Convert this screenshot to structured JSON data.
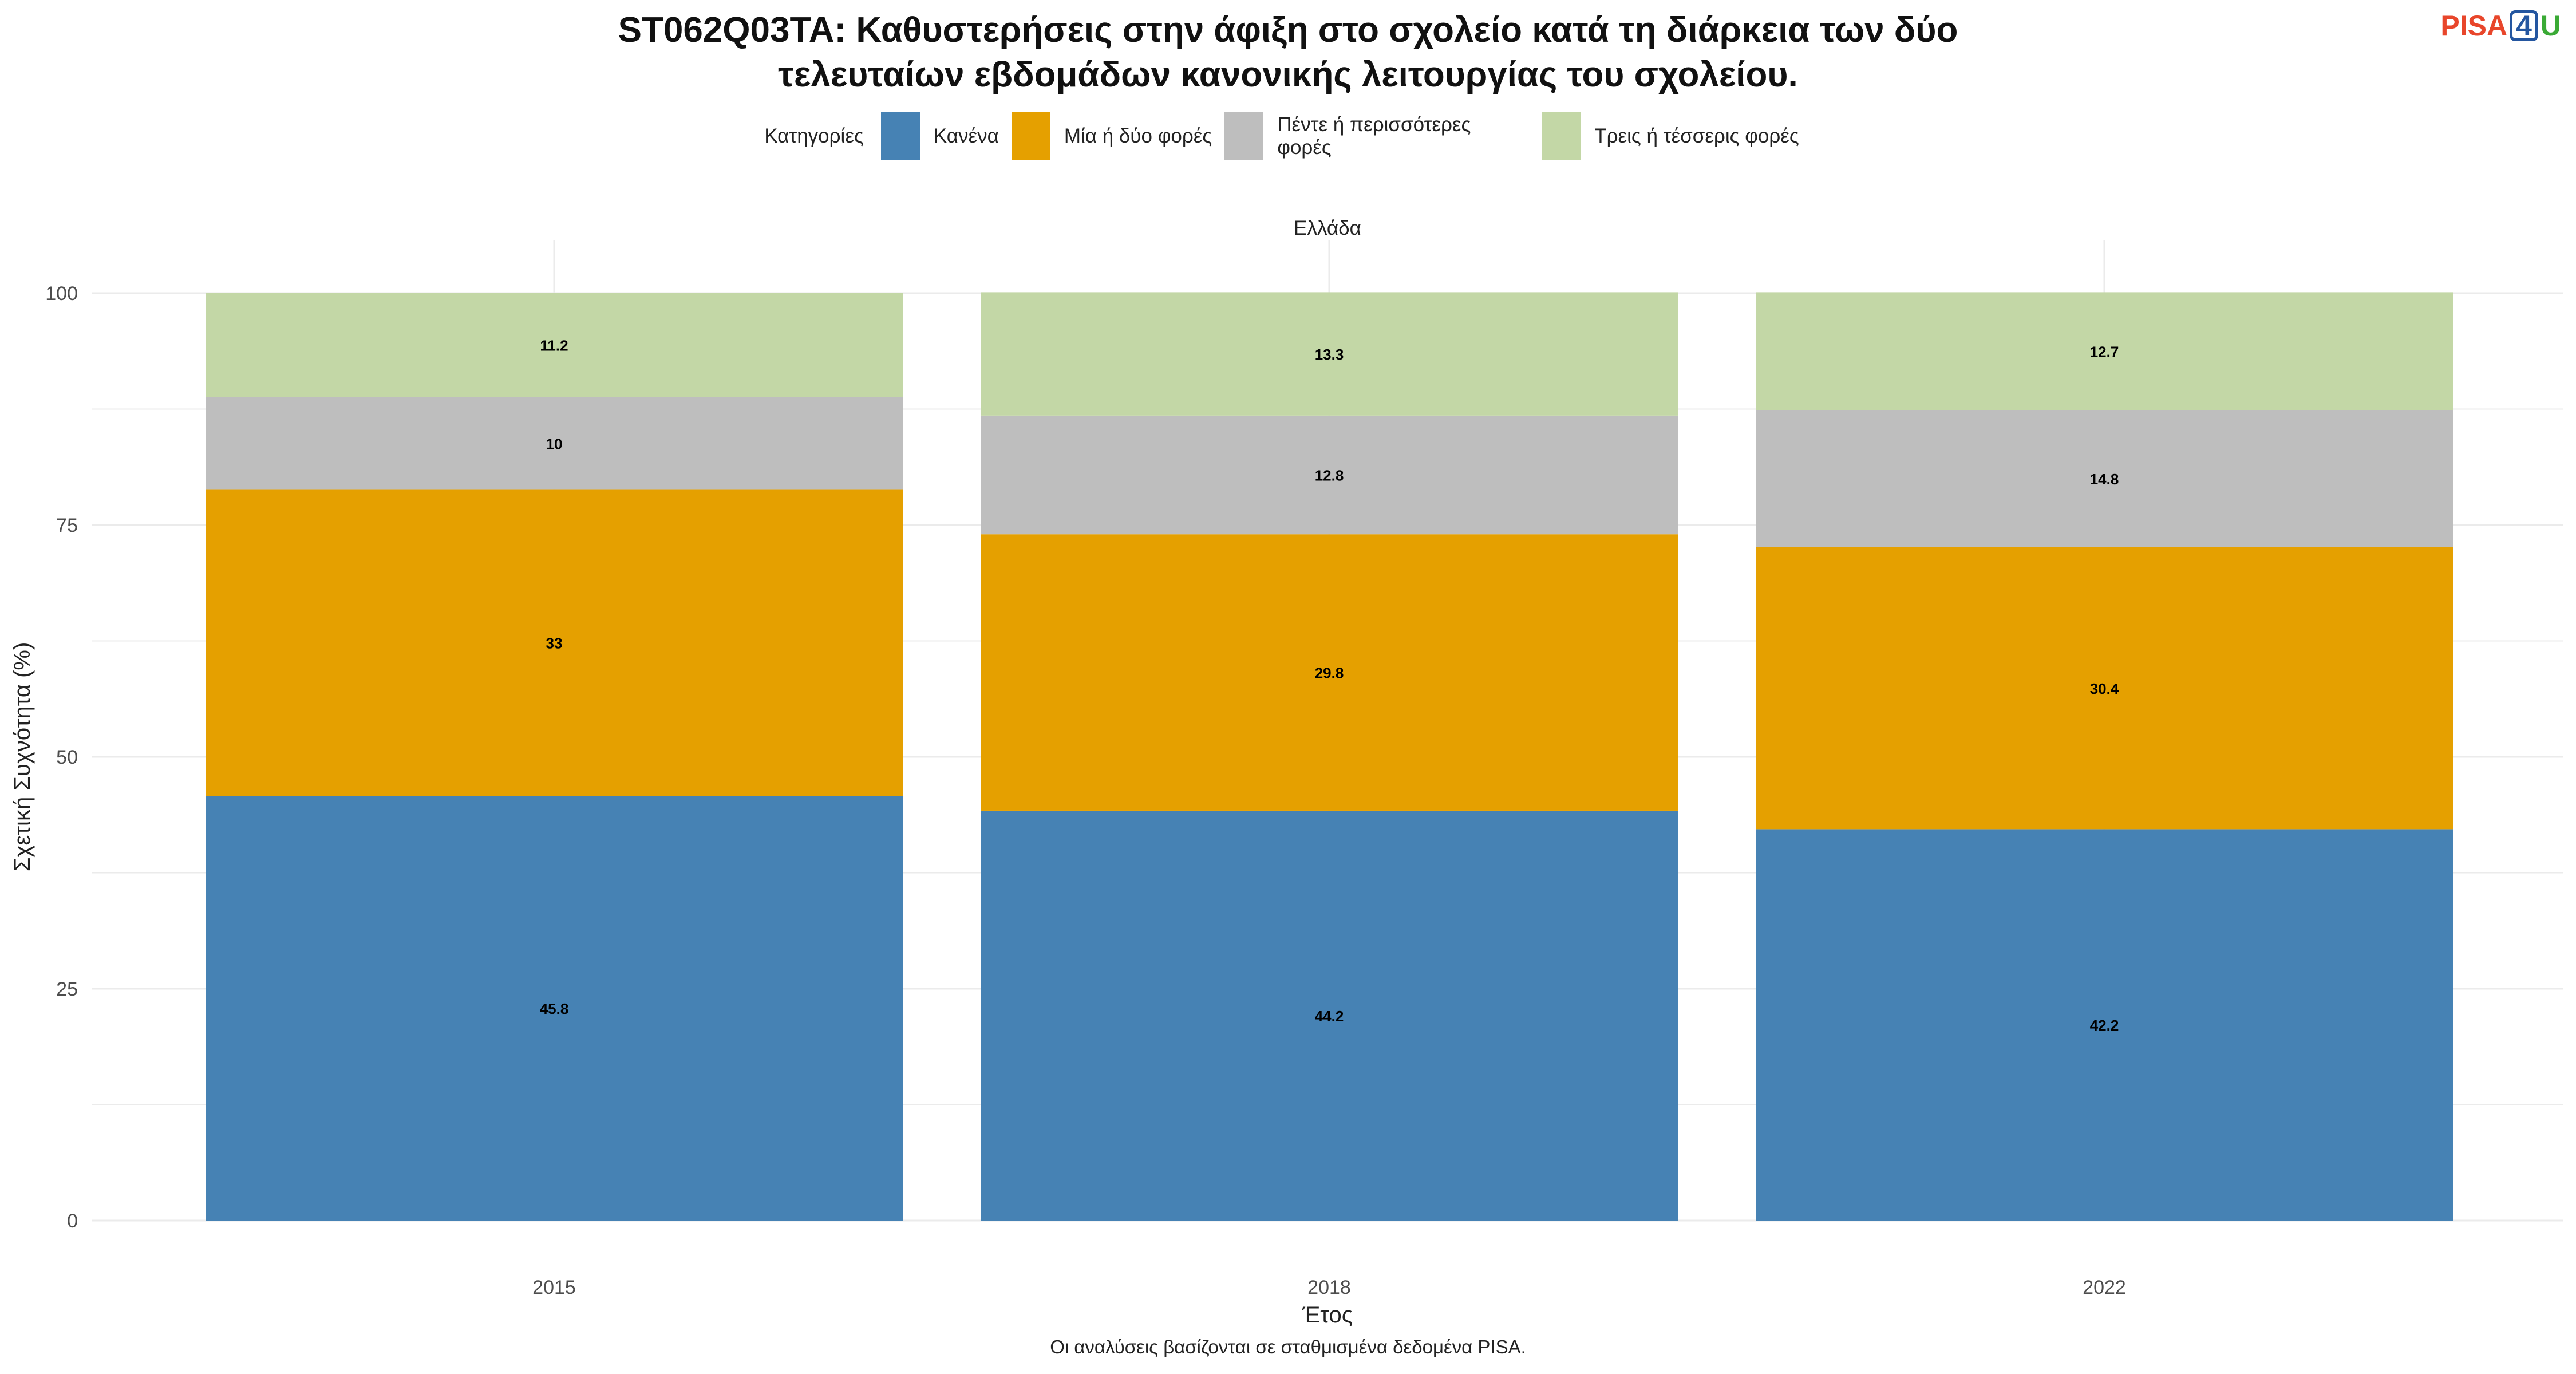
{
  "title_lines": [
    "ST062Q03TA: Καθυστερήσεις στην άφιξη στο σχολείο κατά τη διάρκεια των δύο",
    "τελευταίων εβδομάδων κανονικής λειτουργίας του σχολείου."
  ],
  "logo": {
    "pisa": "PISA",
    "four": "4",
    "u": "U"
  },
  "caption": "Οι αναλύσεις βασίζονται σε σταθμισμένα δεδομένα PISA.",
  "chart_data": {
    "type": "bar",
    "stacked": true,
    "facet_label": "Ελλάδα",
    "categories": [
      "2015",
      "2018",
      "2022"
    ],
    "xlabel": "Έτος",
    "ylabel": "Σχετική Συχνότητα (%)",
    "ylim": [
      0,
      100
    ],
    "yticks": [
      0,
      25,
      50,
      75,
      100
    ],
    "grid": true,
    "legend_title": "Κατηγορίες",
    "legend_position": "top",
    "legend_order": [
      "Κανένα",
      "Μία ή δύο φορές",
      "Πέντε ή περισσότερες φορές",
      "Τρεις ή τέσσερις φορές"
    ],
    "series": [
      {
        "name": "Κανένα",
        "color": "#4682b4",
        "values": [
          45.8,
          44.2,
          42.2
        ],
        "labels": [
          "45.8",
          "44.2",
          "42.2"
        ]
      },
      {
        "name": "Μία ή δύο φορές",
        "color": "#e5a000",
        "values": [
          33,
          29.8,
          30.4
        ],
        "labels": [
          "33",
          "29.8",
          "30.4"
        ]
      },
      {
        "name": "Πέντε ή περισσότερες φορές",
        "color": "#bebebe",
        "values": [
          10,
          12.8,
          14.8
        ],
        "labels": [
          "10",
          "12.8",
          "14.8"
        ]
      },
      {
        "name": "Τρεις ή τέσσερις φορές",
        "color": "#c3d7a6",
        "values": [
          11.2,
          13.3,
          12.7
        ],
        "labels": [
          "11.2",
          "13.3",
          "12.7"
        ]
      }
    ]
  }
}
